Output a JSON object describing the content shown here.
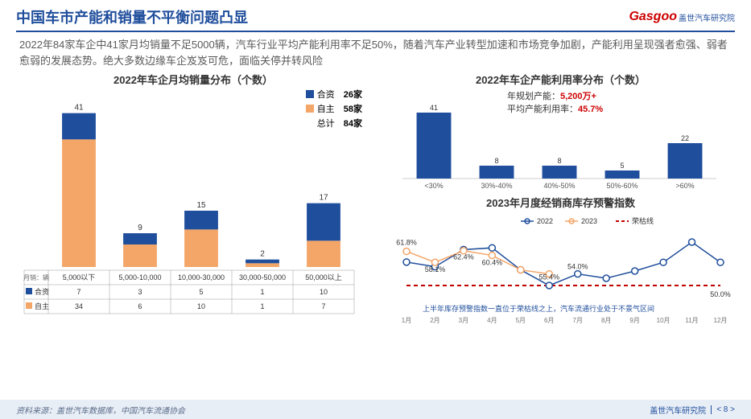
{
  "header": {
    "title": "中国车市产能和销量不平衡问题凸显",
    "logo_text": "Gasgoo",
    "logo_cn": "盖世汽车研究院"
  },
  "body_text": "2022年84家车企中41家月均销量不足5000辆，汽车行业平均产能利用率不足50%，随着汽车产业转型加速和市场竞争加剧，产能利用呈现强者愈强、弱者愈弱的发展态势。绝大多数边缘车企岌岌可危，面临关停并转风险",
  "chart1": {
    "title": "2022年车企月均销量分布（个数）",
    "type": "stacked-bar",
    "categories": [
      "5,000以下",
      "5,000-10,000",
      "10,000-30,000",
      "30,000-50,000",
      "50,000以上"
    ],
    "series": [
      {
        "name": "合资",
        "color": "#1f4e9c",
        "values": [
          7,
          3,
          5,
          1,
          10
        ]
      },
      {
        "name": "自主",
        "color": "#f4a568",
        "values": [
          34,
          6,
          10,
          1,
          7
        ]
      }
    ],
    "totals": [
      41,
      9,
      15,
      2,
      17
    ],
    "legend_counts": {
      "合资": "26家",
      "自主": "58家",
      "总计": "84家"
    },
    "row_label": "月销：辆",
    "row_headers": [
      "合资",
      "自主"
    ],
    "ylim": [
      0,
      45
    ],
    "bar_width": 0.55,
    "label_fontsize": 10,
    "title_fontsize": 13,
    "background_color": "#ffffff"
  },
  "chart2": {
    "title": "2022年车企产能利用率分布（个数）",
    "type": "bar",
    "categories": [
      "<30%",
      "30%-40%",
      "40%-50%",
      "50%-60%",
      ">60%"
    ],
    "values": [
      41,
      8,
      8,
      5,
      22
    ],
    "bar_color": "#1f4e9c",
    "ylim": [
      0,
      45
    ],
    "bar_width": 0.55,
    "stats": {
      "line1_label": "年规划产能：",
      "line1_value": "5,200万+",
      "line2_label": "平均产能利用率：",
      "line2_value": "45.7%"
    },
    "label_fontsize": 9,
    "background_color": "#ffffff"
  },
  "chart3": {
    "title": "2023年月度经销商库存预警指数",
    "type": "line",
    "categories": [
      "1月",
      "2月",
      "3月",
      "4月",
      "5月",
      "6月",
      "7月",
      "8月",
      "9月",
      "10月",
      "11月",
      "12月"
    ],
    "series": [
      {
        "name": "2022",
        "color": "#1f4e9c",
        "marker": "circle-open",
        "values": [
          58.1,
          56.5,
          62.4,
          63.0,
          55.4,
          50.0,
          54.0,
          52.5,
          55.0,
          58.0,
          65.0,
          58.0
        ]
      },
      {
        "name": "2023",
        "color": "#f4a568",
        "marker": "circle-open",
        "values": [
          61.8,
          58.0,
          62.0,
          60.4,
          55.4,
          54.0,
          null,
          null,
          null,
          null,
          null,
          null
        ]
      }
    ],
    "threshold": {
      "name": "荣枯线",
      "color": "#c00000",
      "style": "dash",
      "value": 50.0
    },
    "labels_shown": [
      "61.8%",
      "58.1%",
      "62.4%",
      "60.4%",
      "55.4%",
      "54.0%",
      "50.0%"
    ],
    "ylim": [
      45,
      70
    ],
    "note": "上半年库存预警指数一直位于荣枯线之上，汽车流通行业处于不景气区间",
    "line_width": 1.5,
    "marker_size": 4,
    "background_color": "#ffffff"
  },
  "footer": {
    "source": "资料来源：盖世汽车数据库，中国汽车流通协会",
    "org": "盖世汽车研究院",
    "page": "< 8 >"
  }
}
